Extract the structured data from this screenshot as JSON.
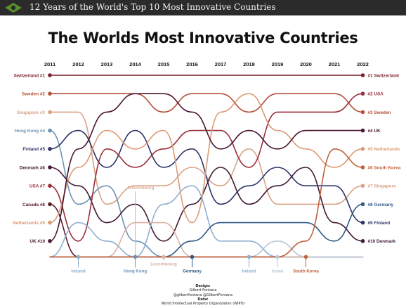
{
  "header": {
    "title": "12 Years of the World's Top 10 Most Innovative Countries"
  },
  "credits": {
    "design_heading": "Design:",
    "designer": "Gilbert Fontana",
    "handles": "@gilbertfontana  @GilbertFontana",
    "data_heading": "Data:",
    "source": "World Intellectual Property Organization (WIPO)"
  },
  "chart_data": {
    "type": "bump",
    "title": "The Worlds Most Innovative Countries",
    "years": [
      2011,
      2012,
      2013,
      2014,
      2015,
      2016,
      2017,
      2018,
      2019,
      2020,
      2021,
      2022
    ],
    "series": [
      {
        "name": "Switzerland",
        "color": "#7a1f2b",
        "ranks": [
          1,
          1,
          1,
          1,
          1,
          1,
          1,
          1,
          1,
          1,
          1,
          1
        ]
      },
      {
        "name": "Sweden",
        "color": "#b5503a",
        "ranks": [
          2,
          2,
          2,
          2,
          3,
          2,
          2,
          3,
          2,
          2,
          2,
          3
        ]
      },
      {
        "name": "Singapore",
        "color": "#d9a285",
        "ranks": [
          3,
          3,
          8,
          7,
          7,
          6,
          7,
          5,
          8,
          8,
          8,
          7
        ]
      },
      {
        "name": "Hong Kong",
        "color": "#6f93b7",
        "ranks": [
          4,
          8,
          7,
          10,
          11,
          14,
          16,
          14,
          13,
          11,
          14,
          15
        ]
      },
      {
        "name": "Finland",
        "color": "#2d3569",
        "ranks": [
          5,
          4,
          6,
          4,
          6,
          5,
          8,
          7,
          6,
          7,
          7,
          9
        ]
      },
      {
        "name": "Denmark",
        "color": "#3f1a35",
        "ranks": [
          6,
          7,
          9,
          8,
          10,
          8,
          6,
          8,
          7,
          6,
          9,
          10
        ]
      },
      {
        "name": "USA",
        "color": "#9a2e3a",
        "ranks": [
          7,
          10,
          5,
          6,
          5,
          4,
          4,
          6,
          3,
          3,
          3,
          2
        ]
      },
      {
        "name": "Canada",
        "color": "#5c1a2b",
        "ranks": [
          8,
          12,
          11,
          12,
          16,
          15,
          18,
          18,
          17,
          17,
          16,
          15
        ]
      },
      {
        "name": "Netherlands",
        "color": "#dc9a74",
        "ranks": [
          9,
          6,
          4,
          5,
          4,
          9,
          3,
          2,
          4,
          5,
          6,
          5
        ]
      },
      {
        "name": "UK",
        "color": "#4a1630",
        "ranks": [
          10,
          5,
          3,
          2,
          2,
          3,
          5,
          4,
          5,
          4,
          4,
          4
        ]
      },
      {
        "name": "Ireland",
        "color": "#8fb0cf",
        "ranks": [
          12,
          9,
          10,
          11,
          8,
          7,
          10,
          10,
          12,
          15,
          19,
          23
        ]
      },
      {
        "name": "Luxembourg",
        "color": "#d8b2a2",
        "ranks": [
          17,
          11,
          12,
          9,
          9,
          12,
          12,
          11,
          18,
          18,
          23,
          23
        ]
      },
      {
        "name": "Germany",
        "color": "#2f5b86",
        "ranks": [
          12,
          15,
          15,
          13,
          12,
          10,
          9,
          9,
          9,
          9,
          10,
          8
        ]
      },
      {
        "name": "Israel",
        "color": "#bcc6d4",
        "ranks": [
          14,
          17,
          14,
          15,
          22,
          21,
          17,
          11,
          10,
          13,
          15,
          14
        ]
      },
      {
        "name": "South Korea",
        "color": "#c0603a",
        "ranks": [
          16,
          21,
          18,
          16,
          14,
          11,
          11,
          12,
          11,
          10,
          5,
          6
        ]
      }
    ],
    "left_labels": [
      {
        "text": "Switzerland #1",
        "series": "Switzerland"
      },
      {
        "text": "Sweden #2",
        "series": "Sweden"
      },
      {
        "text": "Singapore #3",
        "series": "Singapore"
      },
      {
        "text": "Hong Kong #4",
        "series": "Hong Kong"
      },
      {
        "text": "Finland #5",
        "series": "Finland"
      },
      {
        "text": "Denmark #6",
        "series": "Denmark"
      },
      {
        "text": "USA #7",
        "series": "USA"
      },
      {
        "text": "Canada #8",
        "series": "Canada"
      },
      {
        "text": "Netherlands #9",
        "series": "Netherlands"
      },
      {
        "text": "UK #10",
        "series": "UK"
      }
    ],
    "right_labels": [
      {
        "text": "#1 Switzerland",
        "series": "Switzerland"
      },
      {
        "text": "#2 USA",
        "series": "USA"
      },
      {
        "text": "#3 Sweden",
        "series": "Sweden"
      },
      {
        "text": "#4 UK",
        "series": "UK"
      },
      {
        "text": "#5 Netherlands",
        "series": "Netherlands"
      },
      {
        "text": "#6 South Korea",
        "series": "South Korea"
      },
      {
        "text": "#7 Singapore",
        "series": "Singapore"
      },
      {
        "text": "#8 Germany",
        "series": "Germany"
      },
      {
        "text": "#9 Finland",
        "series": "Finland"
      },
      {
        "text": "#10 Denmark",
        "series": "Denmark"
      }
    ],
    "callouts": [
      {
        "text": "Ireland",
        "series": "Ireland",
        "year": 2012,
        "color": "#8fb0cf"
      },
      {
        "text": "Luxembourg",
        "series": "Luxembourg",
        "year": 2014,
        "color": "#d8b2a2"
      },
      {
        "text": "Hong Kong",
        "series": "Hong Kong",
        "year": 2014,
        "color": "#6f93b7"
      },
      {
        "text": "Luxembourg",
        "series": "Luxembourg",
        "year": 2015,
        "color": "#d8b2a2"
      },
      {
        "text": "Germany",
        "series": "Germany",
        "year": 2016,
        "color": "#2f5b86"
      },
      {
        "text": "Ireland",
        "series": "Ireland",
        "year": 2018,
        "color": "#8fb0cf"
      },
      {
        "text": "Israel",
        "series": "Israel",
        "year": 2019,
        "color": "#bcc6d4"
      },
      {
        "text": "South Korea",
        "series": "South Korea",
        "year": 2020,
        "color": "#c0603a"
      }
    ],
    "ylim": [
      1,
      10
    ],
    "grid": false,
    "legend": "none"
  }
}
